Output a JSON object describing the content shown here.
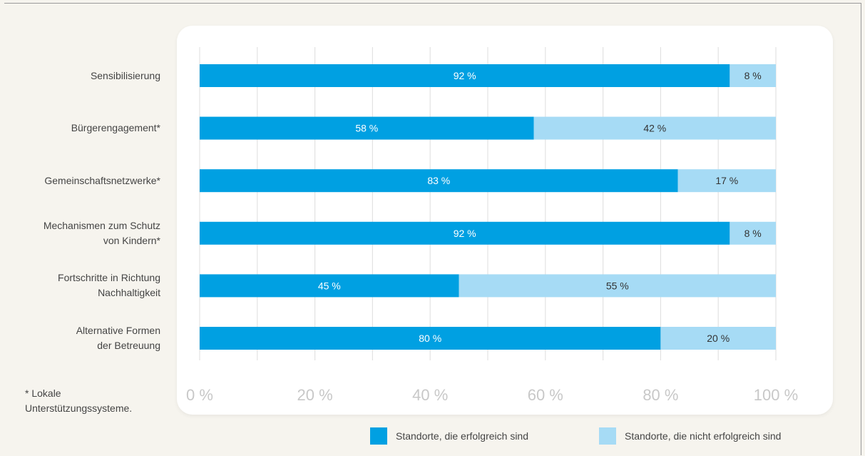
{
  "chart_data": {
    "type": "bar",
    "orientation": "horizontal",
    "stacked": true,
    "categories": [
      [
        "Sensibilisierung"
      ],
      [
        "Bürgerengagement*"
      ],
      [
        "Gemeinschaftsnetzwerke*"
      ],
      [
        "Mechanismen zum Schutz",
        "von Kindern*"
      ],
      [
        "Fortschritte in Richtung",
        "Nachhaltigkeit"
      ],
      [
        "Alternative Formen",
        "der Betreuung"
      ]
    ],
    "series": [
      {
        "name": "Standorte, die erfolgreich sind",
        "values": [
          92,
          58,
          83,
          92,
          45,
          80
        ],
        "color": "#00a0e2"
      },
      {
        "name": "Standorte, die nicht erfolgreich sind",
        "values": [
          8,
          42,
          17,
          8,
          55,
          20
        ],
        "color": "#a6dbf5"
      }
    ],
    "value_suffix": " %",
    "xlim": [
      0,
      100
    ],
    "xticks": [
      0,
      20,
      40,
      60,
      80,
      100
    ],
    "xtick_labels": [
      "0 %",
      "20 %",
      "40 %",
      "60 %",
      "80 %",
      "100 %"
    ],
    "grid": true,
    "legend_position": "bottom"
  },
  "footnote": [
    "* Lokale",
    "Unterstützungssysteme."
  ],
  "colors": {
    "background": "#f6f4ee",
    "card": "#ffffff",
    "grid": "#e2e2e2",
    "tick_label": "#c8c8c8"
  }
}
